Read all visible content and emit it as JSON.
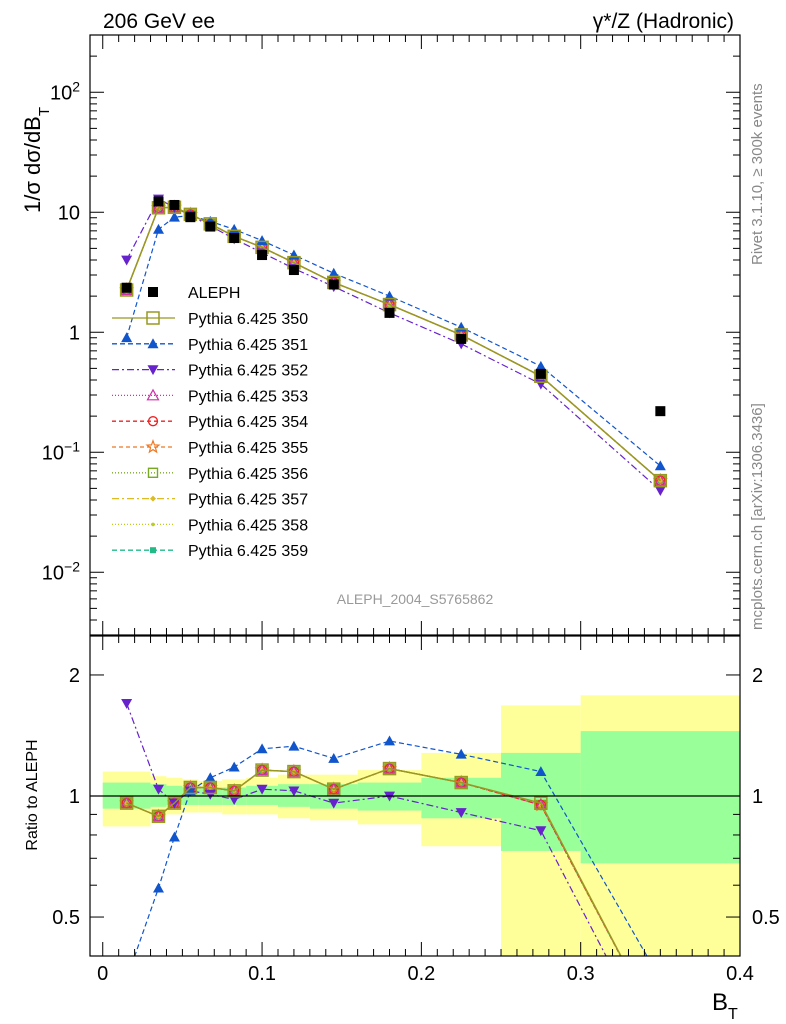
{
  "header": {
    "left": "206 GeV ee",
    "right": "γ*/Z (Hadronic)"
  },
  "side_text": {
    "rivet": "Rivet 3.1.10, ≥ 300k events",
    "mcplots": "mcplots.cern.ch [arXiv:1306.3436]"
  },
  "analysis_label": "ALEPH_2004_S5765862",
  "colors": {
    "band_inner": "#99ff99",
    "band_outer": "#ffff99",
    "data": "#000000"
  },
  "chart_data": [
    {
      "name": "main",
      "type": "line",
      "ylabel": "1/σ dσ/dB_T",
      "yscale": "log",
      "ylim": [
        0.003,
        300
      ],
      "xlim": [
        -0.008,
        0.4
      ],
      "yticks": [
        {
          "v": 0.01,
          "base": "10",
          "exp": "−2"
        },
        {
          "v": 0.1,
          "base": "10",
          "exp": "−1"
        },
        {
          "v": 1,
          "base": "1",
          "exp": ""
        },
        {
          "v": 10,
          "base": "10",
          "exp": ""
        },
        {
          "v": 100,
          "base": "10",
          "exp": "2"
        }
      ],
      "x": [
        0.015,
        0.035,
        0.045,
        0.055,
        0.0675,
        0.0825,
        0.1,
        0.12,
        0.145,
        0.18,
        0.225,
        0.275,
        0.35
      ],
      "data": {
        "name": "ALEPH",
        "values": [
          2.35,
          12.3,
          11.5,
          9.1,
          7.6,
          6.1,
          4.4,
          3.3,
          2.5,
          1.45,
          0.88,
          0.45,
          0.22
        ]
      },
      "series": [
        {
          "name": "Pythia 6.425 350",
          "color": "#999922",
          "marker": "square-open",
          "dash": "",
          "values": [
            2.25,
            10.9,
            11.0,
            9.6,
            8.0,
            6.3,
            5.1,
            3.8,
            2.6,
            1.7,
            0.95,
            0.43,
            0.058
          ]
        },
        {
          "name": "Pythia 6.425 351",
          "color": "#1155cc",
          "marker": "triangle-up",
          "dash": "5,3",
          "values": [
            0.9,
            7.2,
            9.1,
            9.4,
            8.4,
            7.2,
            5.8,
            4.4,
            3.1,
            2.0,
            1.1,
            0.52,
            0.077
          ]
        },
        {
          "name": "Pythia 6.425 352",
          "color": "#6622cc",
          "marker": "triangle-down",
          "dash": "7,3,2,3",
          "values": [
            4.0,
            12.9,
            11.0,
            9.4,
            7.7,
            6.0,
            4.6,
            3.4,
            2.4,
            1.45,
            0.8,
            0.37,
            0.048
          ]
        },
        {
          "name": "Pythia 6.425 353",
          "color": "#cc33aa",
          "marker": "triangle-open",
          "dash": "1,2",
          "values": [
            2.25,
            10.9,
            11.0,
            9.6,
            8.0,
            6.3,
            5.1,
            3.8,
            2.6,
            1.7,
            0.95,
            0.43,
            0.058
          ]
        },
        {
          "name": "Pythia 6.425 354",
          "color": "#ee2222",
          "marker": "circle-open",
          "dash": "4,3",
          "values": [
            2.25,
            10.9,
            11.0,
            9.6,
            8.0,
            6.3,
            5.1,
            3.8,
            2.6,
            1.7,
            0.95,
            0.43,
            0.058
          ]
        },
        {
          "name": "Pythia 6.425 355",
          "color": "#ee7722",
          "marker": "star-open",
          "dash": "4,3",
          "values": [
            2.25,
            10.9,
            11.0,
            9.6,
            8.0,
            6.3,
            5.1,
            3.8,
            2.6,
            1.7,
            0.95,
            0.43,
            0.058
          ]
        },
        {
          "name": "Pythia 6.425 356",
          "color": "#77aa22",
          "marker": "square-open-small",
          "dash": "1,2",
          "values": [
            2.25,
            10.9,
            11.0,
            9.6,
            8.0,
            6.3,
            5.1,
            3.8,
            2.6,
            1.7,
            0.95,
            0.43,
            0.058
          ]
        },
        {
          "name": "Pythia 6.425 357",
          "color": "#ddbb22",
          "marker": "diamond",
          "dash": "7,3,2,3",
          "values": [
            2.25,
            10.9,
            11.0,
            9.6,
            8.0,
            6.3,
            5.1,
            3.8,
            2.6,
            1.7,
            0.95,
            0.43,
            0.058
          ]
        },
        {
          "name": "Pythia 6.425 358",
          "color": "#bbcc22",
          "marker": "dot",
          "dash": "1,2",
          "values": [
            2.25,
            10.9,
            11.0,
            9.6,
            8.0,
            6.3,
            5.1,
            3.8,
            2.6,
            1.7,
            0.95,
            0.43,
            0.058
          ]
        },
        {
          "name": "Pythia 6.425 359",
          "color": "#22bb88",
          "marker": "square-small",
          "dash": "5,3",
          "values": [
            2.25,
            10.9,
            11.0,
            9.6,
            8.0,
            6.3,
            5.1,
            3.8,
            2.6,
            1.7,
            0.95,
            0.43,
            0.058
          ]
        }
      ]
    },
    {
      "name": "ratio",
      "type": "line",
      "ylabel": "Ratio to ALEPH",
      "xlabel": "B_T",
      "yscale": "log",
      "ylim": [
        0.4,
        2.5
      ],
      "xlim": [
        -0.008,
        0.4
      ],
      "xticks": [
        0,
        0.1,
        0.2,
        0.3,
        0.4
      ],
      "xtick_labels": [
        "0",
        "0.1",
        "0.2",
        "0.3",
        "0.4"
      ],
      "yticks": [
        0.5,
        1,
        2
      ],
      "ytick_labels": [
        "0.5",
        "1",
        "2"
      ],
      "bands": [
        {
          "x0": 0.0,
          "x1": 0.03,
          "inner": [
            0.93,
            1.08
          ],
          "outer": [
            0.84,
            1.15
          ]
        },
        {
          "x0": 0.03,
          "x1": 0.04,
          "inner": [
            0.94,
            1.07
          ],
          "outer": [
            0.89,
            1.12
          ]
        },
        {
          "x0": 0.04,
          "x1": 0.05,
          "inner": [
            0.95,
            1.06
          ],
          "outer": [
            0.9,
            1.11
          ]
        },
        {
          "x0": 0.05,
          "x1": 0.06,
          "inner": [
            0.95,
            1.05
          ],
          "outer": [
            0.91,
            1.1
          ]
        },
        {
          "x0": 0.06,
          "x1": 0.075,
          "inner": [
            0.95,
            1.05
          ],
          "outer": [
            0.91,
            1.09
          ]
        },
        {
          "x0": 0.075,
          "x1": 0.09,
          "inner": [
            0.95,
            1.05
          ],
          "outer": [
            0.9,
            1.1
          ]
        },
        {
          "x0": 0.09,
          "x1": 0.11,
          "inner": [
            0.95,
            1.06
          ],
          "outer": [
            0.9,
            1.11
          ]
        },
        {
          "x0": 0.11,
          "x1": 0.13,
          "inner": [
            0.94,
            1.07
          ],
          "outer": [
            0.88,
            1.13
          ]
        },
        {
          "x0": 0.13,
          "x1": 0.16,
          "inner": [
            0.93,
            1.07
          ],
          "outer": [
            0.87,
            1.13
          ]
        },
        {
          "x0": 0.16,
          "x1": 0.2,
          "inner": [
            0.92,
            1.08
          ],
          "outer": [
            0.85,
            1.16
          ]
        },
        {
          "x0": 0.2,
          "x1": 0.25,
          "inner": [
            0.88,
            1.11
          ],
          "outer": [
            0.75,
            1.28
          ]
        },
        {
          "x0": 0.25,
          "x1": 0.3,
          "inner": [
            0.73,
            1.28
          ],
          "outer": [
            0.3,
            1.68
          ]
        },
        {
          "x0": 0.3,
          "x1": 0.4,
          "inner": [
            0.68,
            1.45
          ],
          "outer": [
            0.3,
            1.78
          ]
        }
      ],
      "x": [
        0.015,
        0.035,
        0.045,
        0.055,
        0.0675,
        0.0825,
        0.1,
        0.12,
        0.145,
        0.18,
        0.225,
        0.275,
        0.35
      ],
      "series": [
        {
          "name": "Pythia 6.425 350",
          "values": [
            0.96,
            0.89,
            0.96,
            1.05,
            1.05,
            1.03,
            1.16,
            1.15,
            1.04,
            1.17,
            1.08,
            0.96,
            0.26
          ]
        },
        {
          "name": "Pythia 6.425 351",
          "values": [
            0.35,
            0.59,
            0.79,
            1.03,
            1.11,
            1.18,
            1.31,
            1.33,
            1.24,
            1.37,
            1.27,
            1.15,
            0.35
          ]
        },
        {
          "name": "Pythia 6.425 352",
          "values": [
            1.7,
            1.04,
            0.96,
            1.03,
            1.01,
            0.98,
            1.04,
            1.03,
            0.96,
            1.0,
            0.91,
            0.82,
            0.22
          ]
        },
        {
          "name": "Pythia 6.425 353",
          "values": [
            0.96,
            0.89,
            0.96,
            1.05,
            1.05,
            1.03,
            1.16,
            1.15,
            1.04,
            1.17,
            1.08,
            0.95,
            0.26
          ]
        },
        {
          "name": "Pythia 6.425 354",
          "values": [
            0.96,
            0.89,
            0.96,
            1.05,
            1.05,
            1.03,
            1.16,
            1.15,
            1.04,
            1.17,
            1.08,
            0.95,
            0.26
          ]
        },
        {
          "name": "Pythia 6.425 355",
          "values": [
            0.96,
            0.89,
            0.96,
            1.05,
            1.05,
            1.03,
            1.16,
            1.15,
            1.04,
            1.17,
            1.08,
            0.95,
            0.26
          ]
        },
        {
          "name": "Pythia 6.425 356",
          "values": [
            0.96,
            0.89,
            0.96,
            1.05,
            1.05,
            1.03,
            1.16,
            1.15,
            1.04,
            1.17,
            1.08,
            0.95,
            0.26
          ]
        },
        {
          "name": "Pythia 6.425 357",
          "values": [
            0.96,
            0.89,
            0.96,
            1.05,
            1.05,
            1.03,
            1.16,
            1.15,
            1.04,
            1.17,
            1.08,
            0.95,
            0.26
          ]
        },
        {
          "name": "Pythia 6.425 358",
          "values": [
            0.96,
            0.89,
            0.96,
            1.05,
            1.05,
            1.03,
            1.16,
            1.15,
            1.04,
            1.17,
            1.08,
            0.95,
            0.26
          ]
        },
        {
          "name": "Pythia 6.425 359",
          "values": [
            0.96,
            0.89,
            0.96,
            1.05,
            1.05,
            1.03,
            1.16,
            1.15,
            1.04,
            1.17,
            1.08,
            0.95,
            0.26
          ]
        }
      ]
    }
  ]
}
